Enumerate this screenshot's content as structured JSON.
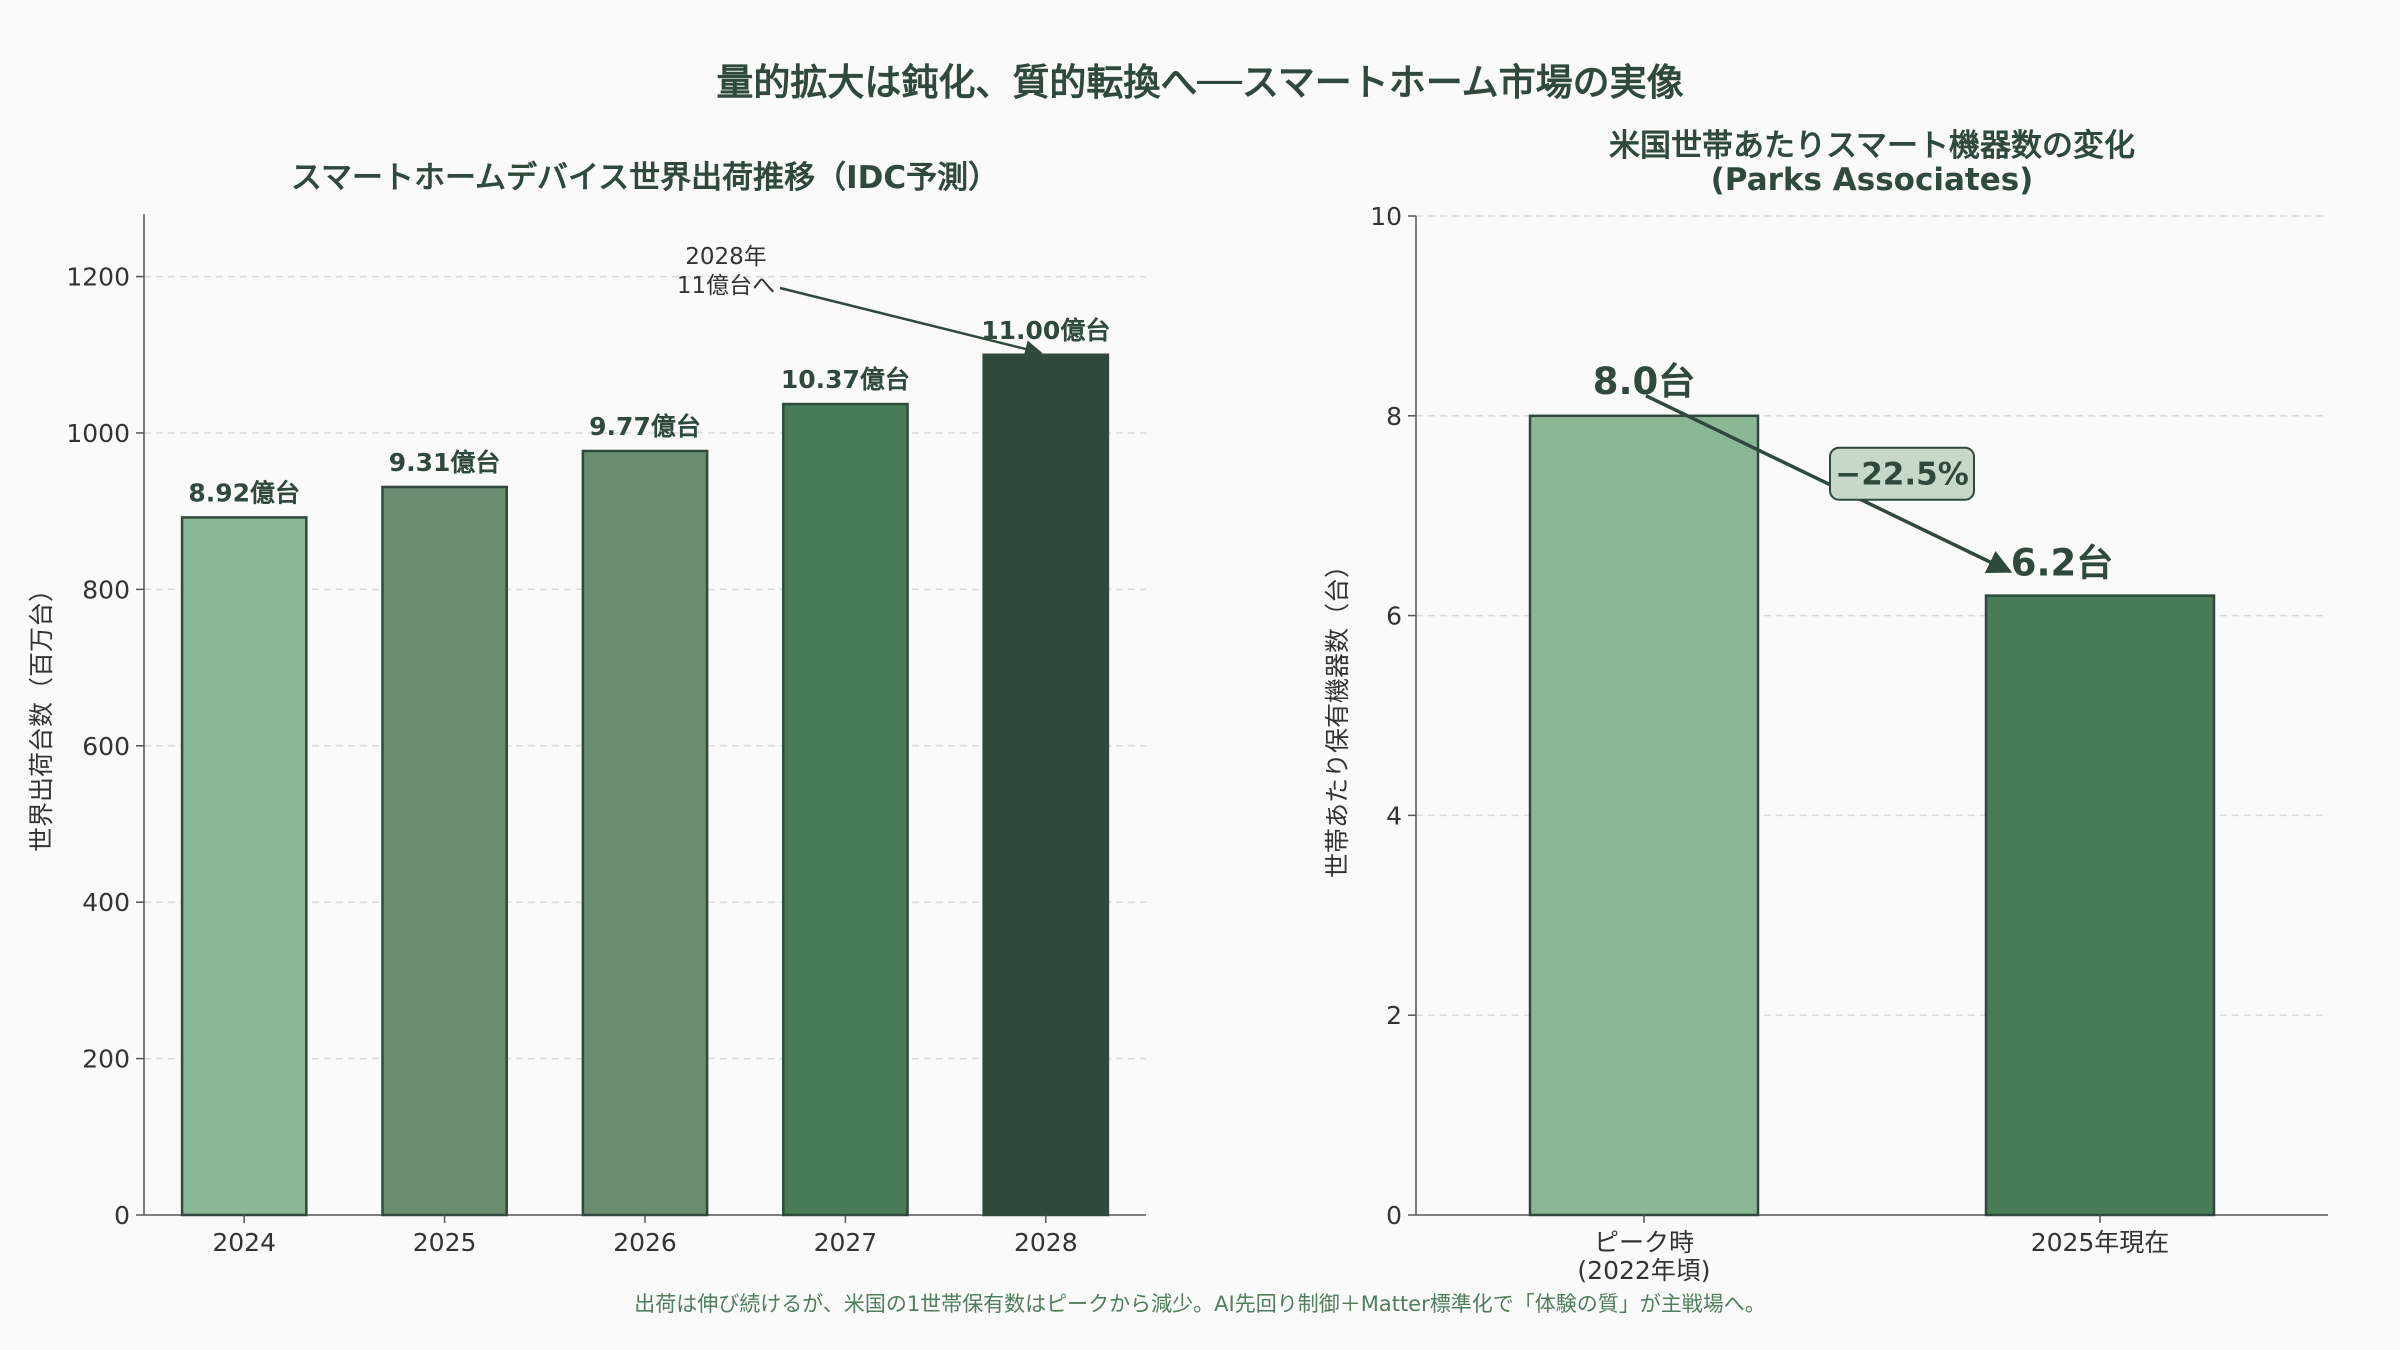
{
  "suptitle": "量的拡大は鈍化、質的転換へ──スマートホーム市場の実像",
  "footer": "出荷は伸び続けるが、米国の1世帯保有数はピークから減少。AI先回り制御＋Matter標準化で「体験の質」が主戦場へ。",
  "chart_data": [
    {
      "type": "bar",
      "title": "スマートホームデバイス世界出荷推移（IDC予測）",
      "xlabel": "",
      "ylabel": "世界出荷台数（百万台）",
      "categories": [
        "2024",
        "2025",
        "2026",
        "2027",
        "2028"
      ],
      "values": [
        892,
        931,
        977,
        1037,
        1100
      ],
      "data_labels": [
        "8.92億台",
        "9.31億台",
        "9.77億台",
        "10.37億台",
        "11.00億台"
      ],
      "colors": [
        "#8bb796",
        "#698d6e",
        "#698d6e",
        "#4a7b57",
        "#2f4a3d"
      ],
      "ylim": [
        0,
        1280
      ],
      "yticks": [
        0,
        200,
        400,
        600,
        800,
        1000,
        1200
      ],
      "grid": true,
      "annotation": {
        "text": [
          "2028年",
          "11億台へ"
        ],
        "target_category": "2028"
      }
    },
    {
      "type": "bar",
      "title": "米国世帯あたりスマート機器数の変化",
      "subtitle": "(Parks Associates)",
      "xlabel": "",
      "ylabel": "世帯あたり保有機器数（台）",
      "categories": [
        [
          "ピーク時",
          "(2022年頃)"
        ],
        [
          "2025年現在"
        ]
      ],
      "values": [
        8.0,
        6.2
      ],
      "data_labels": [
        "8.0台",
        "6.2台"
      ],
      "colors": [
        "#8bb796",
        "#4a7b57"
      ],
      "ylim": [
        0,
        10
      ],
      "yticks": [
        0,
        2,
        4,
        6,
        8,
        10
      ],
      "grid": true,
      "change_label": "−22.5%"
    }
  ]
}
